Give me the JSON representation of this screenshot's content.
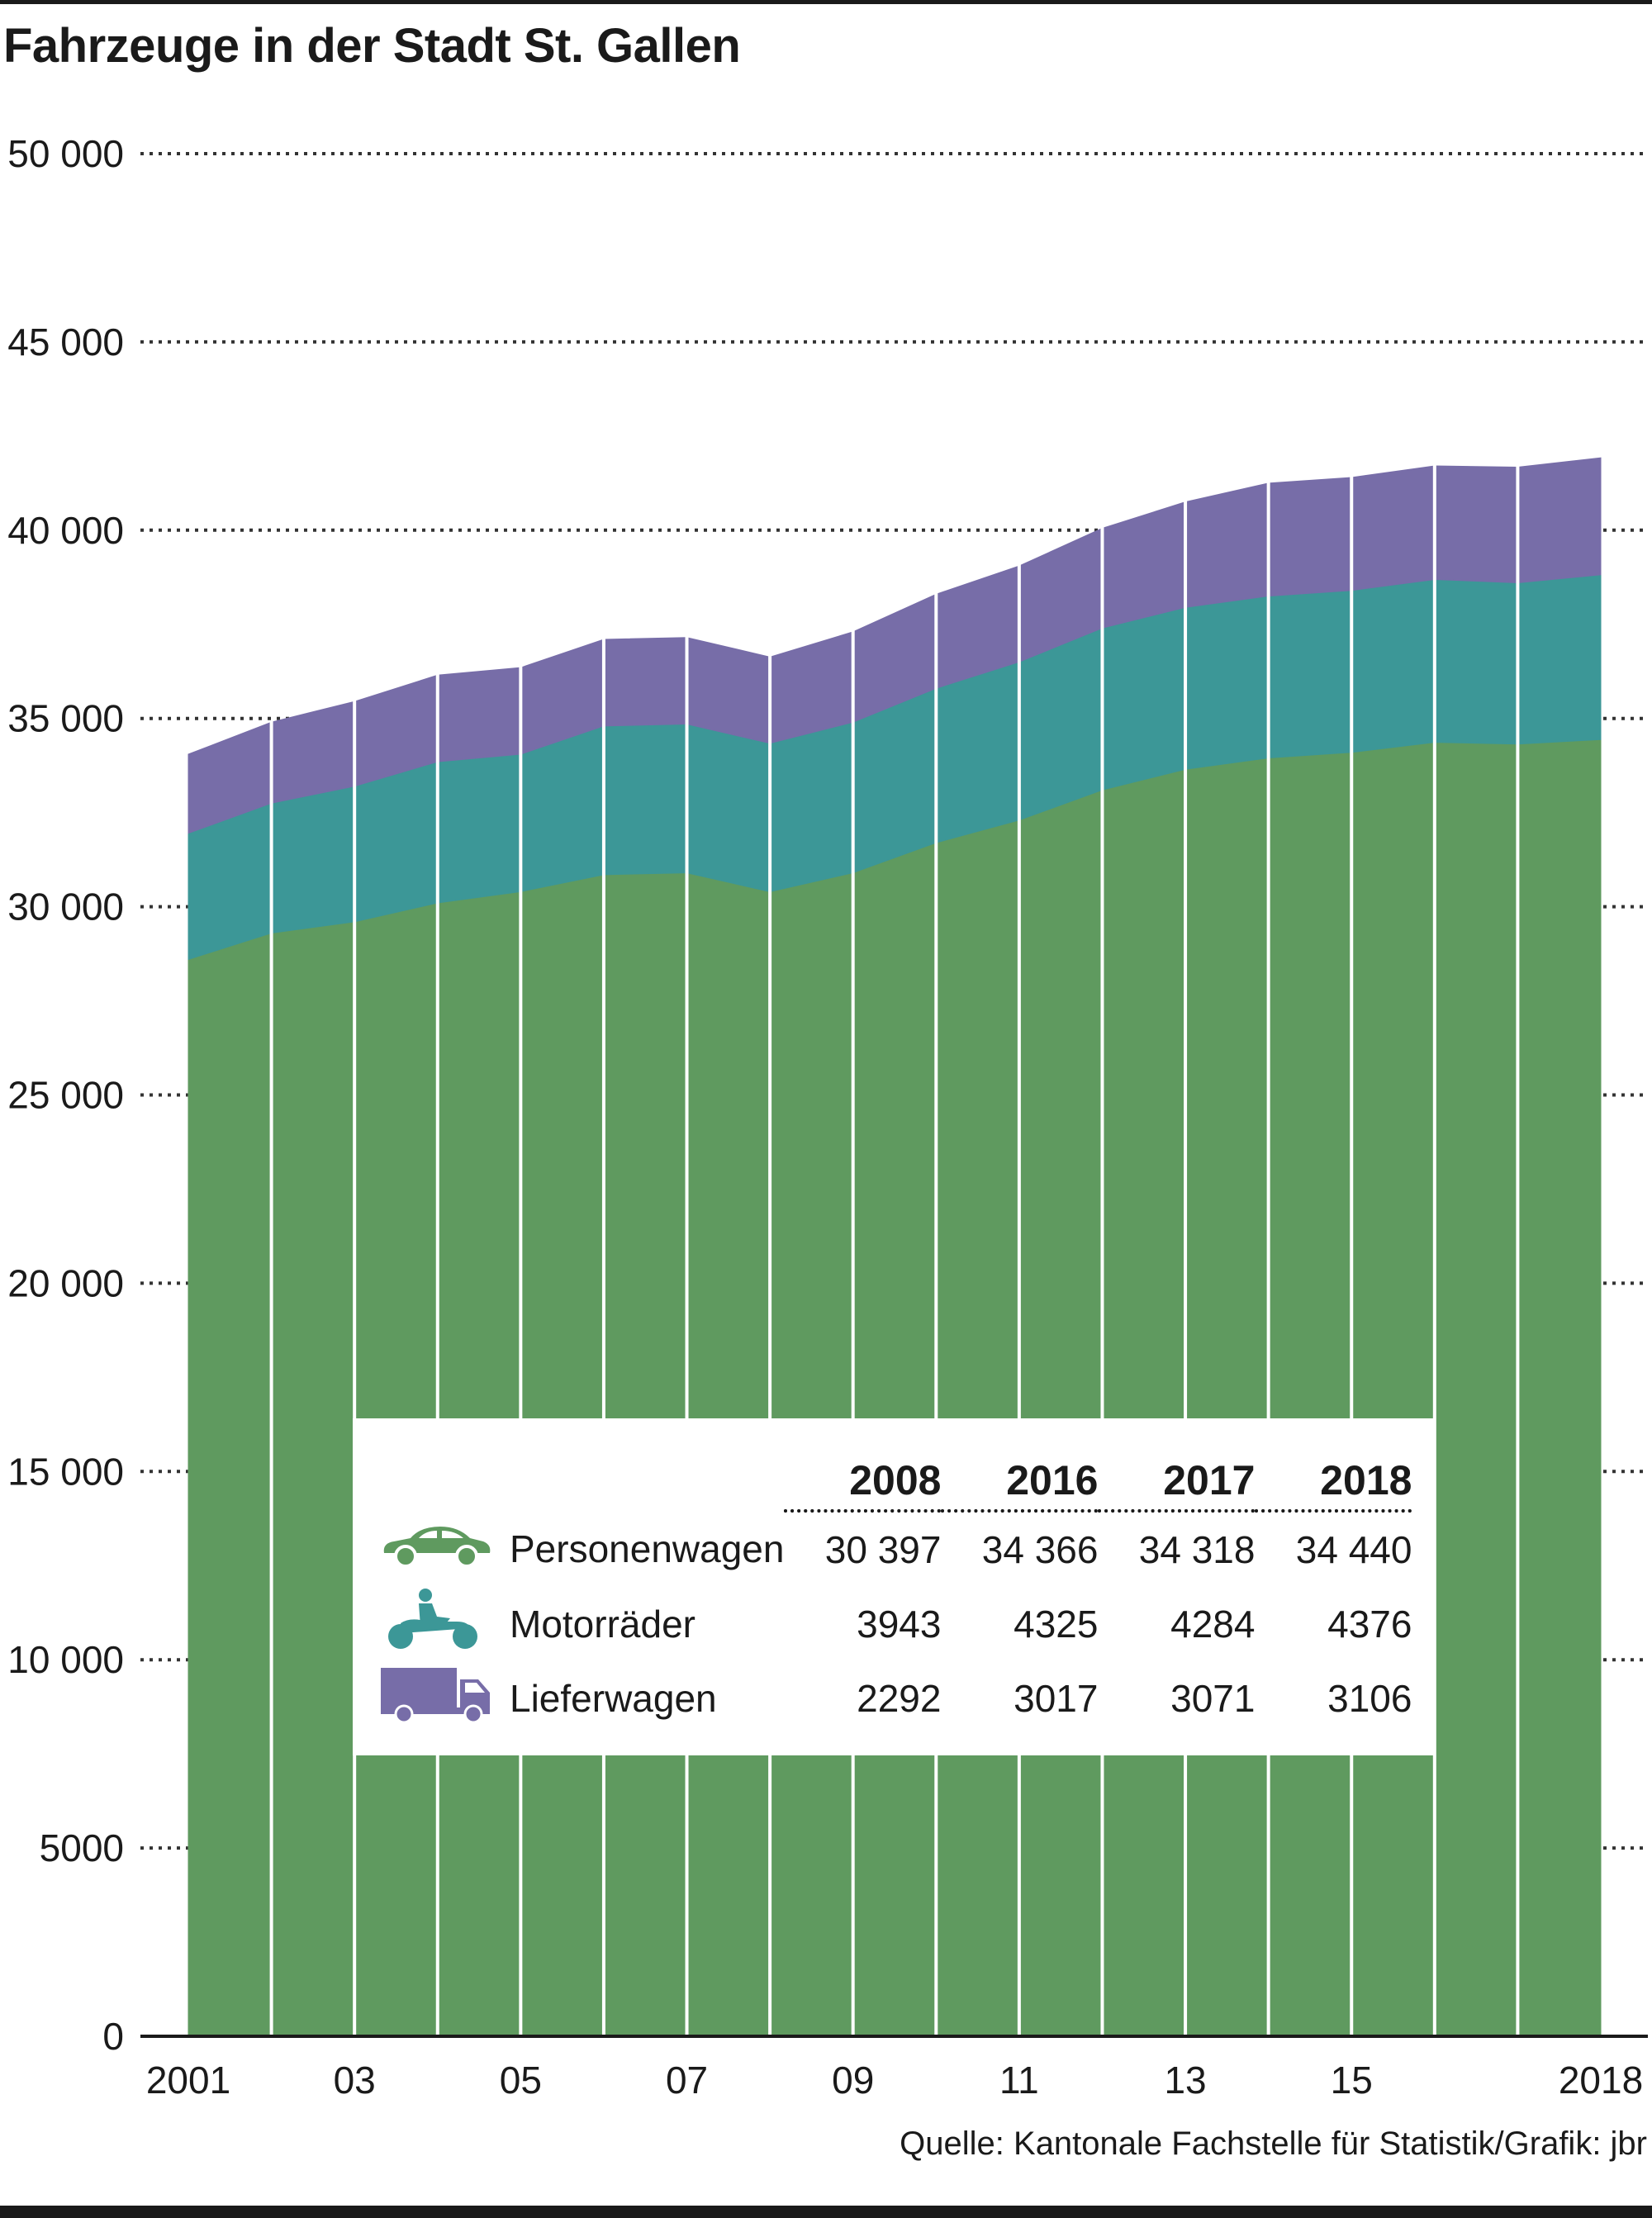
{
  "title": "Fahrzeuge in der Stadt St. Gallen",
  "source": "Quelle: Kantonale Fachstelle für Statistik/Grafik: jbr",
  "colors": {
    "personenwagen": "#5f9a5f",
    "motorraeder": "#3c9797",
    "lieferwagen": "#776da8",
    "grid": "#333333"
  },
  "legend": {
    "headers": [
      "2008",
      "2016",
      "2017",
      "2018"
    ],
    "rows": [
      {
        "icon": "car-icon",
        "label": "Personenwagen",
        "values": [
          "30 397",
          "34 366",
          "34 318",
          "34 440"
        ]
      },
      {
        "icon": "motorcycle-icon",
        "label": "Motorräder",
        "values": [
          "3943",
          "4325",
          "4284",
          "4376"
        ]
      },
      {
        "icon": "truck-icon",
        "label": "Lieferwagen",
        "values": [
          "2292",
          "3017",
          "3071",
          "3106"
        ]
      }
    ]
  },
  "chart_data": {
    "type": "area",
    "stacked": true,
    "x": [
      2001,
      2002,
      2003,
      2004,
      2005,
      2006,
      2007,
      2008,
      2009,
      2010,
      2011,
      2012,
      2013,
      2014,
      2015,
      2016,
      2017,
      2018
    ],
    "x_tick_labels": [
      "2001",
      "03",
      "05",
      "07",
      "09",
      "11",
      "13",
      "15",
      "2018"
    ],
    "x_tick_values": [
      2001,
      2003,
      2005,
      2007,
      2009,
      2011,
      2013,
      2015,
      2018
    ],
    "y_tick_labels": [
      "0",
      "5000",
      "10 000",
      "15 000",
      "20 000",
      "25 000",
      "30 000",
      "35 000",
      "40 000",
      "45 000",
      "50 000"
    ],
    "ylim": [
      0,
      50000
    ],
    "grid": true,
    "series": [
      {
        "name": "Personenwagen",
        "values": [
          28600,
          29300,
          29600,
          30100,
          30400,
          30850,
          30900,
          30397,
          30900,
          31700,
          32300,
          33100,
          33650,
          33950,
          34100,
          34366,
          34318,
          34440
        ]
      },
      {
        "name": "Motorräder",
        "values": [
          3350,
          3450,
          3600,
          3750,
          3650,
          3950,
          3950,
          3943,
          4000,
          4100,
          4200,
          4300,
          4300,
          4300,
          4300,
          4325,
          4284,
          4376
        ]
      },
      {
        "name": "Lieferwagen",
        "values": [
          2100,
          2150,
          2250,
          2300,
          2300,
          2300,
          2300,
          2292,
          2400,
          2500,
          2550,
          2650,
          2800,
          3000,
          3000,
          3017,
          3071,
          3106
        ]
      }
    ]
  }
}
